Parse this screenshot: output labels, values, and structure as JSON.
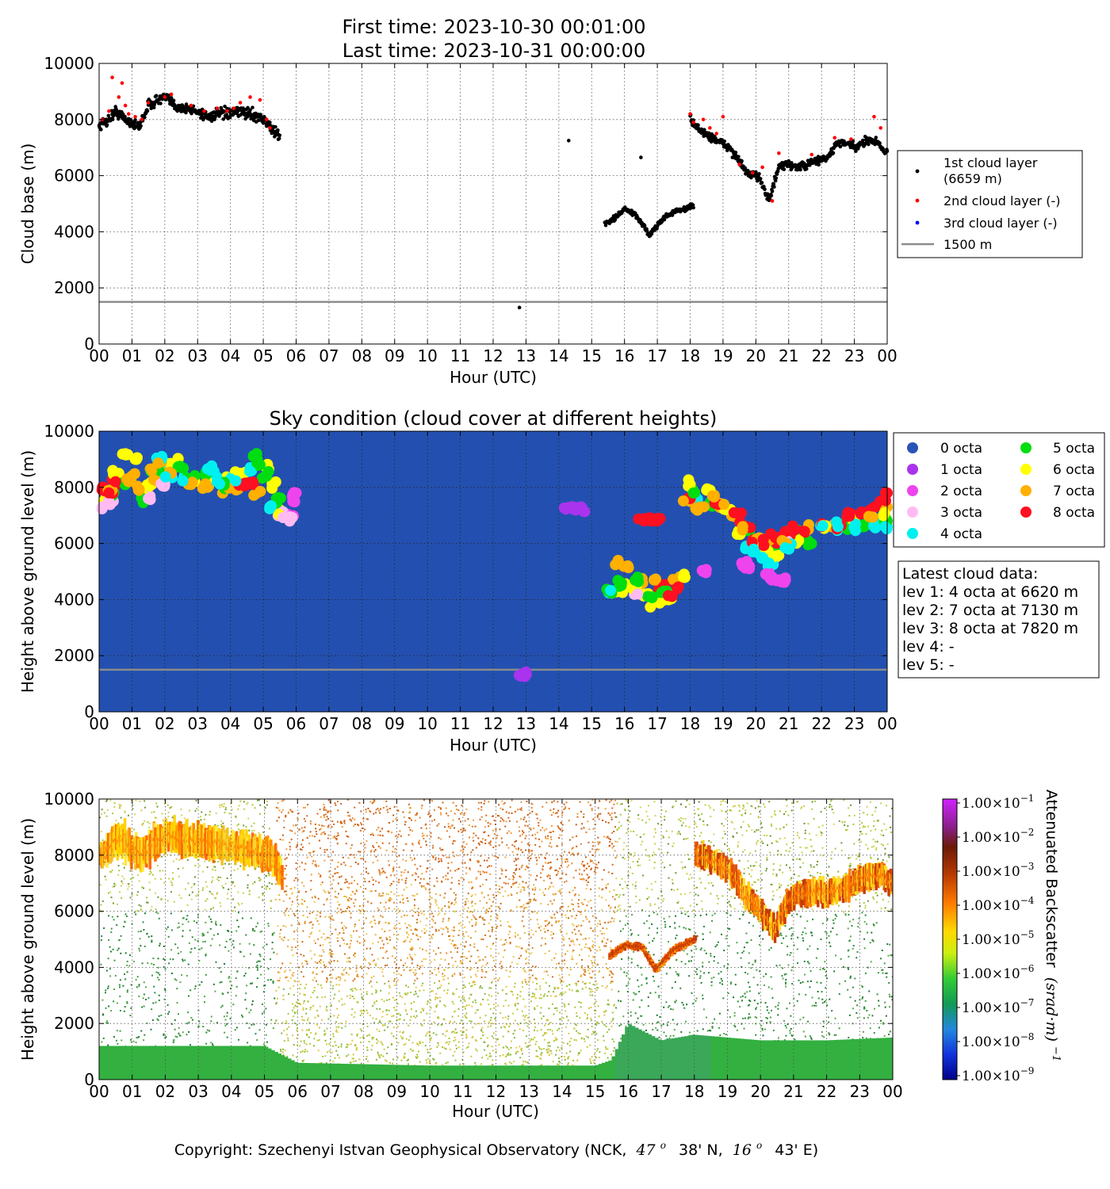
{
  "header": {
    "first_time": "First time: 2023-10-30 00:01:00",
    "last_time": "Last time: 2023-10-31 00:00:00"
  },
  "footer": {
    "copyright_prefix": "Copyright: Szechenyi Istvan Geophysical Observatory (NCK,",
    "lat_deg": "47",
    "lat_min": "38' N,",
    "lon_deg": "16",
    "lon_min": "43' E)",
    "degree_symbol": "o"
  },
  "axes_common": {
    "x_ticks": [
      "00",
      "01",
      "02",
      "03",
      "04",
      "05",
      "06",
      "07",
      "08",
      "09",
      "10",
      "11",
      "12",
      "13",
      "14",
      "15",
      "16",
      "17",
      "18",
      "19",
      "20",
      "21",
      "22",
      "23",
      "00"
    ],
    "xlabel": "Hour (UTC)",
    "y_ticks": [
      "0",
      "2000",
      "4000",
      "6000",
      "8000",
      "10000"
    ]
  },
  "chart_data": [
    {
      "type": "scatter",
      "id": "cloud-base",
      "title": "",
      "xlabel": "Hour (UTC)",
      "ylabel": "Cloud base (m)",
      "xlim": [
        0,
        24
      ],
      "ylim": [
        0,
        10000
      ],
      "grid": true,
      "legend_position": "right",
      "reference_line": {
        "name": "1500 m",
        "y": 1500,
        "color": "#8c8c8c"
      },
      "series": [
        {
          "name": "1st cloud layer\n(6659 m)",
          "legend_lines": [
            "1st cloud layer",
            "(6659 m)"
          ],
          "color": "#000000",
          "segments": [
            {
              "x": [
                0.0,
                0.3,
                0.5,
                0.8,
                1.0,
                1.2,
                1.5,
                1.8,
                2.0,
                2.3,
                2.6,
                3.0,
                3.3,
                3.6,
                4.0,
                4.3,
                4.6,
                4.9,
                5.1,
                5.3,
                5.5
              ],
              "y": [
                7800,
                8000,
                8300,
                8000,
                7900,
                7700,
                8500,
                8700,
                8800,
                8500,
                8400,
                8300,
                8100,
                8200,
                8200,
                8300,
                8200,
                8100,
                7900,
                7600,
                7400
              ],
              "jitter": 260
            },
            {
              "x": [
                12.8
              ],
              "y": [
                1300
              ],
              "jitter": 0
            },
            {
              "x": [
                14.3
              ],
              "y": [
                7250
              ],
              "jitter": 0
            },
            {
              "x": [
                15.4,
                15.6,
                15.8,
                16.0,
                16.2,
                16.4,
                16.6,
                16.75,
                16.9,
                17.2,
                17.5,
                17.8,
                18.1
              ],
              "y": [
                4300,
                4400,
                4600,
                4800,
                4700,
                4500,
                4200,
                3850,
                4100,
                4500,
                4700,
                4800,
                4950
              ],
              "jitter": 120
            },
            {
              "x": [
                16.5
              ],
              "y": [
                6650
              ],
              "jitter": 0
            },
            {
              "x": [
                18.0,
                18.3,
                18.6,
                18.9,
                19.2,
                19.5,
                19.8,
                20.1,
                20.4,
                20.7,
                21.0,
                21.3,
                21.6,
                21.9,
                22.2,
                22.5,
                22.8,
                23.1,
                23.4,
                23.7,
                24.0
              ],
              "y": [
                8000,
                7600,
                7400,
                7200,
                7000,
                6500,
                6000,
                6000,
                5100,
                6300,
                6400,
                6300,
                6400,
                6550,
                6650,
                7200,
                7100,
                7000,
                7300,
                7200,
                6800
              ],
              "jitter": 200
            }
          ]
        },
        {
          "name": "2nd cloud layer (-)",
          "color": "#ff0000",
          "points": {
            "x": [
              0.1,
              0.3,
              0.4,
              0.6,
              0.7,
              0.8,
              0.9,
              1.1,
              1.3,
              1.5,
              2.0,
              2.2,
              2.8,
              3.2,
              3.6,
              3.9,
              4.1,
              4.3,
              4.6,
              4.9,
              5.1,
              5.2,
              18.0,
              18.1,
              18.4,
              18.6,
              18.8,
              19.0,
              19.5,
              19.9,
              20.2,
              20.5,
              20.7,
              21.7,
              22.4,
              22.9,
              23.6,
              23.8
            ],
            "y": [
              8000,
              8300,
              9500,
              8800,
              9300,
              8500,
              8200,
              8100,
              8000,
              8600,
              8800,
              8900,
              8500,
              8300,
              8400,
              8300,
              8400,
              8600,
              8800,
              8700,
              8000,
              7700,
              8200,
              7900,
              8000,
              7700,
              7500,
              8100,
              6400,
              6100,
              6300,
              5100,
              6800,
              6750,
              7350,
              7300,
              8100,
              7700
            ]
          }
        },
        {
          "name": "3rd cloud layer (-)",
          "color": "#0000ff",
          "points": {
            "x": [],
            "y": []
          }
        }
      ]
    },
    {
      "type": "scatter",
      "id": "sky-condition",
      "title": "Sky condition (cloud cover at different heights)",
      "xlabel": "Hour (UTC)",
      "ylabel": "Height above ground level (m)",
      "xlim": [
        0,
        24
      ],
      "ylim": [
        0,
        10000
      ],
      "grid": true,
      "background": "#2350b0",
      "legend_position": "right",
      "reference_line": {
        "y": 1500,
        "color": "#8c8c8c"
      },
      "series": [
        {
          "name": "0 octa",
          "color": "#2a53b8",
          "points": {
            "x": [],
            "y": []
          }
        },
        {
          "name": "1 octa",
          "color": "#aa33ee",
          "points": {
            "x": [
              12.85,
              12.95,
              14.3,
              14.5,
              14.7,
              4.0
            ],
            "y": [
              1270,
              1270,
              7280,
              7280,
              7280,
              8000
            ]
          }
        },
        {
          "name": "2 octa",
          "color": "#ee44ee",
          "points": {
            "x": [
              5.8,
              5.9,
              6.0,
              19.6,
              19.8,
              20.3,
              20.5,
              20.7,
              20.9,
              18.4
            ],
            "y": [
              7000,
              7500,
              7800,
              5200,
              5100,
              4900,
              4800,
              4700,
              4700,
              5000
            ]
          }
        },
        {
          "name": "3 octa",
          "color": "#ffbbf2",
          "points": {
            "x": [
              0.1,
              0.3,
              1.5,
              2.0,
              5.6,
              5.8,
              16.4,
              21.0
            ],
            "y": [
              7300,
              7500,
              7600,
              8100,
              6950,
              6950,
              4200,
              6000
            ]
          }
        },
        {
          "name": "4 octa",
          "color": "#00f0f0",
          "points": {
            "x": [
              1.9,
              2.1,
              2.6,
              3.4,
              3.6,
              4.0,
              4.6,
              5.2,
              15.6,
              19.7,
              19.9,
              20.2,
              20.4,
              21.0,
              22.0,
              22.5,
              23.0,
              23.6,
              24.0,
              18.2
            ],
            "y": [
              9000,
              8400,
              8300,
              8600,
              8200,
              8300,
              8700,
              7300,
              4300,
              5900,
              5700,
              5500,
              5300,
              5800,
              6600,
              6600,
              6600,
              6600,
              6600,
              7600
            ]
          }
        },
        {
          "name": "5 octa",
          "color": "#00dd11",
          "points": {
            "x": [
              0.4,
              0.8,
              1.4,
              1.8,
              2.5,
              2.8,
              3.3,
              3.8,
              4.7,
              4.9,
              5.1,
              5.4,
              15.5,
              15.9,
              16.4,
              16.8,
              17.2,
              18.1,
              18.6,
              19.7,
              20.6,
              21.1,
              21.6,
              22.7,
              23.3,
              24.0
            ],
            "y": [
              7700,
              8100,
              7600,
              8500,
              8700,
              8300,
              8500,
              8100,
              9100,
              8800,
              8400,
              7600,
              4300,
              4500,
              4800,
              4100,
              4300,
              7800,
              7400,
              6500,
              5900,
              6400,
              6000,
              6600,
              6600,
              6800
            ]
          }
        },
        {
          "name": "6 octa",
          "color": "#ffff00",
          "points": {
            "x": [
              0.2,
              0.6,
              0.8,
              1.1,
              1.3,
              1.6,
              2.1,
              2.4,
              2.9,
              3.4,
              3.9,
              4.3,
              5.1,
              5.3,
              5.5,
              15.6,
              16.0,
              16.3,
              16.6,
              16.9,
              17.3,
              17.8,
              18.0,
              18.5,
              19.1,
              19.5,
              20.0,
              20.3,
              20.6,
              21.3,
              22.1,
              23.0,
              23.9
            ],
            "y": [
              7600,
              8500,
              9200,
              9000,
              7800,
              8100,
              8800,
              9000,
              8200,
              8500,
              8300,
              8500,
              8700,
              8100,
              7200,
              4300,
              4400,
              4500,
              4200,
              3900,
              4100,
              4800,
              8100,
              7900,
              7200,
              6400,
              6000,
              5800,
              5500,
              6100,
              6600,
              6800,
              7000
            ]
          }
        },
        {
          "name": "7 octa",
          "color": "#ffb000",
          "points": {
            "x": [
              0.3,
              0.9,
              1.0,
              1.2,
              1.6,
              1.7,
              1.9,
              2.2,
              2.8,
              3.3,
              3.8,
              4.2,
              4.8,
              5.4,
              15.8,
              16.1,
              16.5,
              16.9,
              17.6,
              18.0,
              18.3,
              18.7,
              19.0,
              19.3,
              19.6,
              20.1,
              20.4,
              20.8,
              21.6,
              22.3,
              23.5,
              24.0
            ],
            "y": [
              7900,
              8200,
              8400,
              7900,
              8600,
              8300,
              8900,
              8500,
              8100,
              8000,
              7900,
              8000,
              7800,
              7300,
              5300,
              5200,
              4600,
              4700,
              4700,
              7500,
              7300,
              7700,
              7400,
              7100,
              6600,
              6200,
              6200,
              6100,
              6500,
              6600,
              7000,
              7300
            ]
          }
        },
        {
          "name": "8 octa",
          "color": "#ff1020",
          "points": {
            "x": [
              0.1,
              0.3,
              0.5,
              4.3,
              4.5,
              4.7,
              16.6,
              16.8,
              17.0,
              17.2,
              17.4,
              17.6,
              18.0,
              18.8,
              19.4,
              19.7,
              19.9,
              20.2,
              20.6,
              20.9,
              21.2,
              21.5,
              22.0,
              22.5,
              22.8,
              23.2,
              23.5,
              23.8,
              24.0
            ],
            "y": [
              8000,
              7800,
              8200,
              8100,
              8100,
              8100,
              6800,
              6800,
              6800,
              4500,
              4200,
              4400,
              7600,
              7400,
              7000,
              6600,
              6100,
              6000,
              6200,
              6300,
              6500,
              6400,
              6600,
              6600,
              7100,
              7100,
              7200,
              7500,
              7800
            ]
          }
        }
      ],
      "info_box": {
        "title": "Latest cloud data:",
        "lines": [
          "lev 1: 4 octa at 6620 m",
          "lev 2: 7 octa at 7130 m",
          "lev 3: 8 octa at 7820 m",
          "lev 4: -",
          "lev 5: -"
        ]
      }
    },
    {
      "type": "heatmap",
      "id": "backscatter",
      "title": "",
      "xlabel": "Hour (UTC)",
      "ylabel": "Height above ground level (m)",
      "xlim": [
        0,
        24
      ],
      "ylim": [
        0,
        10000
      ],
      "grid": true,
      "colorbar": {
        "label": "Attenuated Backscatter",
        "unit": "(srad·m)",
        "unit_exponent": "−1",
        "scale": "log",
        "ticks": [
          {
            "mantissa": "1.00",
            "exponent": "−1"
          },
          {
            "mantissa": "1.00",
            "exponent": "−2"
          },
          {
            "mantissa": "1.00",
            "exponent": "−3"
          },
          {
            "mantissa": "1.00",
            "exponent": "−4"
          },
          {
            "mantissa": "1.00",
            "exponent": "−5"
          },
          {
            "mantissa": "1.00",
            "exponent": "−6"
          },
          {
            "mantissa": "1.00",
            "exponent": "−7"
          },
          {
            "mantissa": "1.00",
            "exponent": "−8"
          },
          {
            "mantissa": "1.00",
            "exponent": "−9"
          }
        ],
        "times_sign": "×10",
        "colors": [
          "#a020ff",
          "#6a1a0a",
          "#cc3300",
          "#ff8800",
          "#ffff00",
          "#66cc22",
          "#11aa55",
          "#2288dd",
          "#0000aa"
        ]
      },
      "layers": [
        {
          "desc": "near-surface aerosol layer",
          "x": [
            0,
            5,
            5.5,
            6,
            10,
            15,
            15.5,
            16,
            17,
            18,
            20,
            22,
            24
          ],
          "y": [
            1200,
            1200,
            900,
            600,
            500,
            500,
            700,
            2000,
            1400,
            1600,
            1400,
            1400,
            1500
          ]
        },
        {
          "desc": "cloud band 1",
          "x": [
            0,
            0.6,
            1.2,
            2.0,
            3.0,
            4.0,
            4.6,
            5.2,
            5.5
          ],
          "y": [
            8000,
            8600,
            8000,
            8700,
            8500,
            8300,
            8200,
            7900,
            7300
          ]
        },
        {
          "desc": "cloud band 2",
          "x": [
            15.4,
            15.9,
            16.4,
            16.8,
            17.3,
            18.0
          ],
          "y": [
            4400,
            4800,
            4700,
            3900,
            4600,
            5000
          ]
        },
        {
          "desc": "cloud band 3",
          "x": [
            18.0,
            18.5,
            19.0,
            19.5,
            20.0,
            20.4,
            20.8,
            21.4,
            22.0,
            22.5,
            23.0,
            23.6,
            24.0
          ],
          "y": [
            8000,
            7800,
            7500,
            6600,
            6000,
            5300,
            6400,
            6700,
            6700,
            6800,
            7200,
            7300,
            7000
          ]
        }
      ]
    }
  ]
}
